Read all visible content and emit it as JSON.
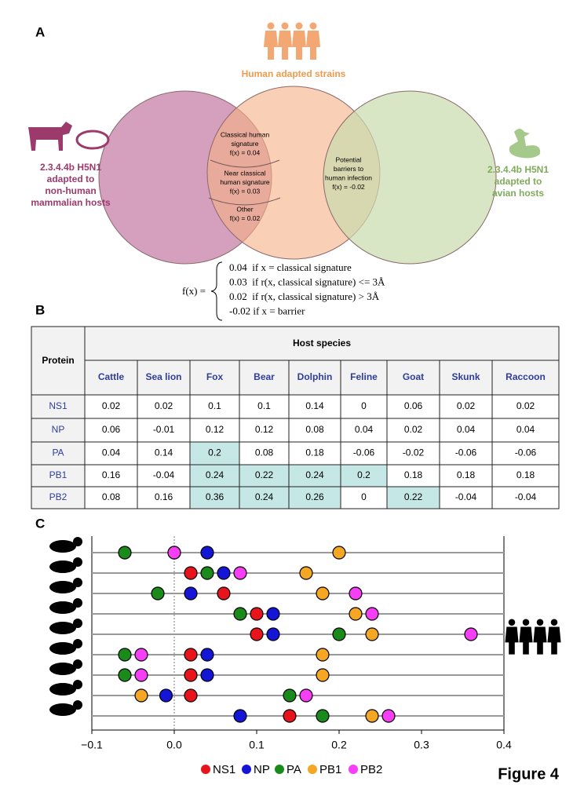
{
  "panel_a": {
    "label": "A",
    "human_label": "Human adapted strains",
    "left_label": [
      "2.3.4.4b H5N1",
      "adapted to",
      "non-human",
      "mammalian hosts"
    ],
    "right_label": [
      "2.3.4.4b H5N1",
      "adapted to",
      "avian hosts"
    ],
    "regions": [
      {
        "lines": [
          "Classical human",
          "signature",
          "f(x) = 0.04"
        ]
      },
      {
        "lines": [
          "Near classical",
          "human signature",
          "f(x) = 0.03"
        ]
      },
      {
        "lines": [
          "Other",
          "f(x) = 0.02"
        ]
      },
      {
        "lines": [
          "Potential",
          "barriers to",
          "human infection",
          "f(x) = -0.02"
        ]
      }
    ],
    "formula": {
      "lhs": "f(x) =",
      "cases": [
        "0.04  if x = classical signature",
        "0.03  if r(x, classical signature) <= 3Å",
        "0.02  if r(x, classical signature) > 3Å",
        "-0.02 if x = barrier"
      ]
    }
  },
  "panel_b": {
    "label": "B",
    "table": {
      "corner": "Protein",
      "group_header": "Host species",
      "columns": [
        "Cattle",
        "Sea lion",
        "Fox",
        "Bear",
        "Dolphin",
        "Feline",
        "Goat",
        "Skunk",
        "Raccoon"
      ],
      "rows": [
        {
          "protein": "NS1",
          "values": [
            0.02,
            0.02,
            0.1,
            0.1,
            0.14,
            0,
            0.06,
            0.02,
            0.02
          ]
        },
        {
          "protein": "NP",
          "values": [
            0.06,
            -0.01,
            0.12,
            0.12,
            0.08,
            0.04,
            0.02,
            0.04,
            0.04
          ]
        },
        {
          "protein": "PA",
          "values": [
            0.04,
            0.14,
            0.2,
            0.08,
            0.18,
            -0.06,
            -0.02,
            -0.06,
            -0.06
          ]
        },
        {
          "protein": "PB1",
          "values": [
            0.16,
            -0.04,
            0.24,
            0.22,
            0.24,
            0.2,
            0.18,
            0.18,
            0.18
          ]
        },
        {
          "protein": "PB2",
          "values": [
            0.08,
            0.16,
            0.36,
            0.24,
            0.26,
            0,
            0.22,
            -0.04,
            -0.04
          ]
        }
      ],
      "highlighted": [
        [
          2,
          2
        ],
        [
          3,
          2
        ],
        [
          3,
          3
        ],
        [
          3,
          4
        ],
        [
          3,
          5
        ],
        [
          4,
          2
        ],
        [
          4,
          3
        ],
        [
          4,
          4
        ],
        [
          4,
          6
        ]
      ],
      "highlight_color": "#c5e8e6"
    }
  },
  "panel_c": {
    "label": "C"
  },
  "chart_data": {
    "type": "dot",
    "categories": [
      null,
      null,
      null,
      null,
      null,
      null,
      null,
      null,
      null
    ],
    "series": [
      {
        "name": "NS1",
        "color": "#e8141c",
        "values": [
          0,
          0.02,
          0.06,
          0.1,
          0.1,
          0.02,
          0.02,
          0.02,
          0.14
        ]
      },
      {
        "name": "NP",
        "color": "#1515d8",
        "values": [
          0.04,
          0.06,
          0.02,
          0.12,
          0.12,
          0.04,
          0.04,
          -0.01,
          0.08
        ]
      },
      {
        "name": "PA",
        "color": "#1a8a1a",
        "values": [
          -0.06,
          0.04,
          -0.02,
          0.08,
          0.2,
          -0.06,
          -0.06,
          0.14,
          0.18
        ]
      },
      {
        "name": "PB1",
        "color": "#f5a623",
        "values": [
          0.2,
          0.16,
          0.18,
          0.22,
          0.24,
          0.18,
          0.18,
          -0.04,
          0.24
        ]
      },
      {
        "name": "PB2",
        "color": "#f53ef5",
        "values": [
          0,
          0.08,
          0.22,
          0.24,
          0.36,
          -0.04,
          -0.04,
          0.16,
          0.26
        ]
      }
    ],
    "xlim": [
      -0.1,
      0.4
    ],
    "xticks": [
      {
        "value": -0.1,
        "label": "−0.1"
      },
      {
        "value": 0,
        "label": "0.0"
      },
      0.1,
      0.2,
      0.3,
      0.4
    ],
    "reference_line": 0
  },
  "figure_label": "Figure 4"
}
